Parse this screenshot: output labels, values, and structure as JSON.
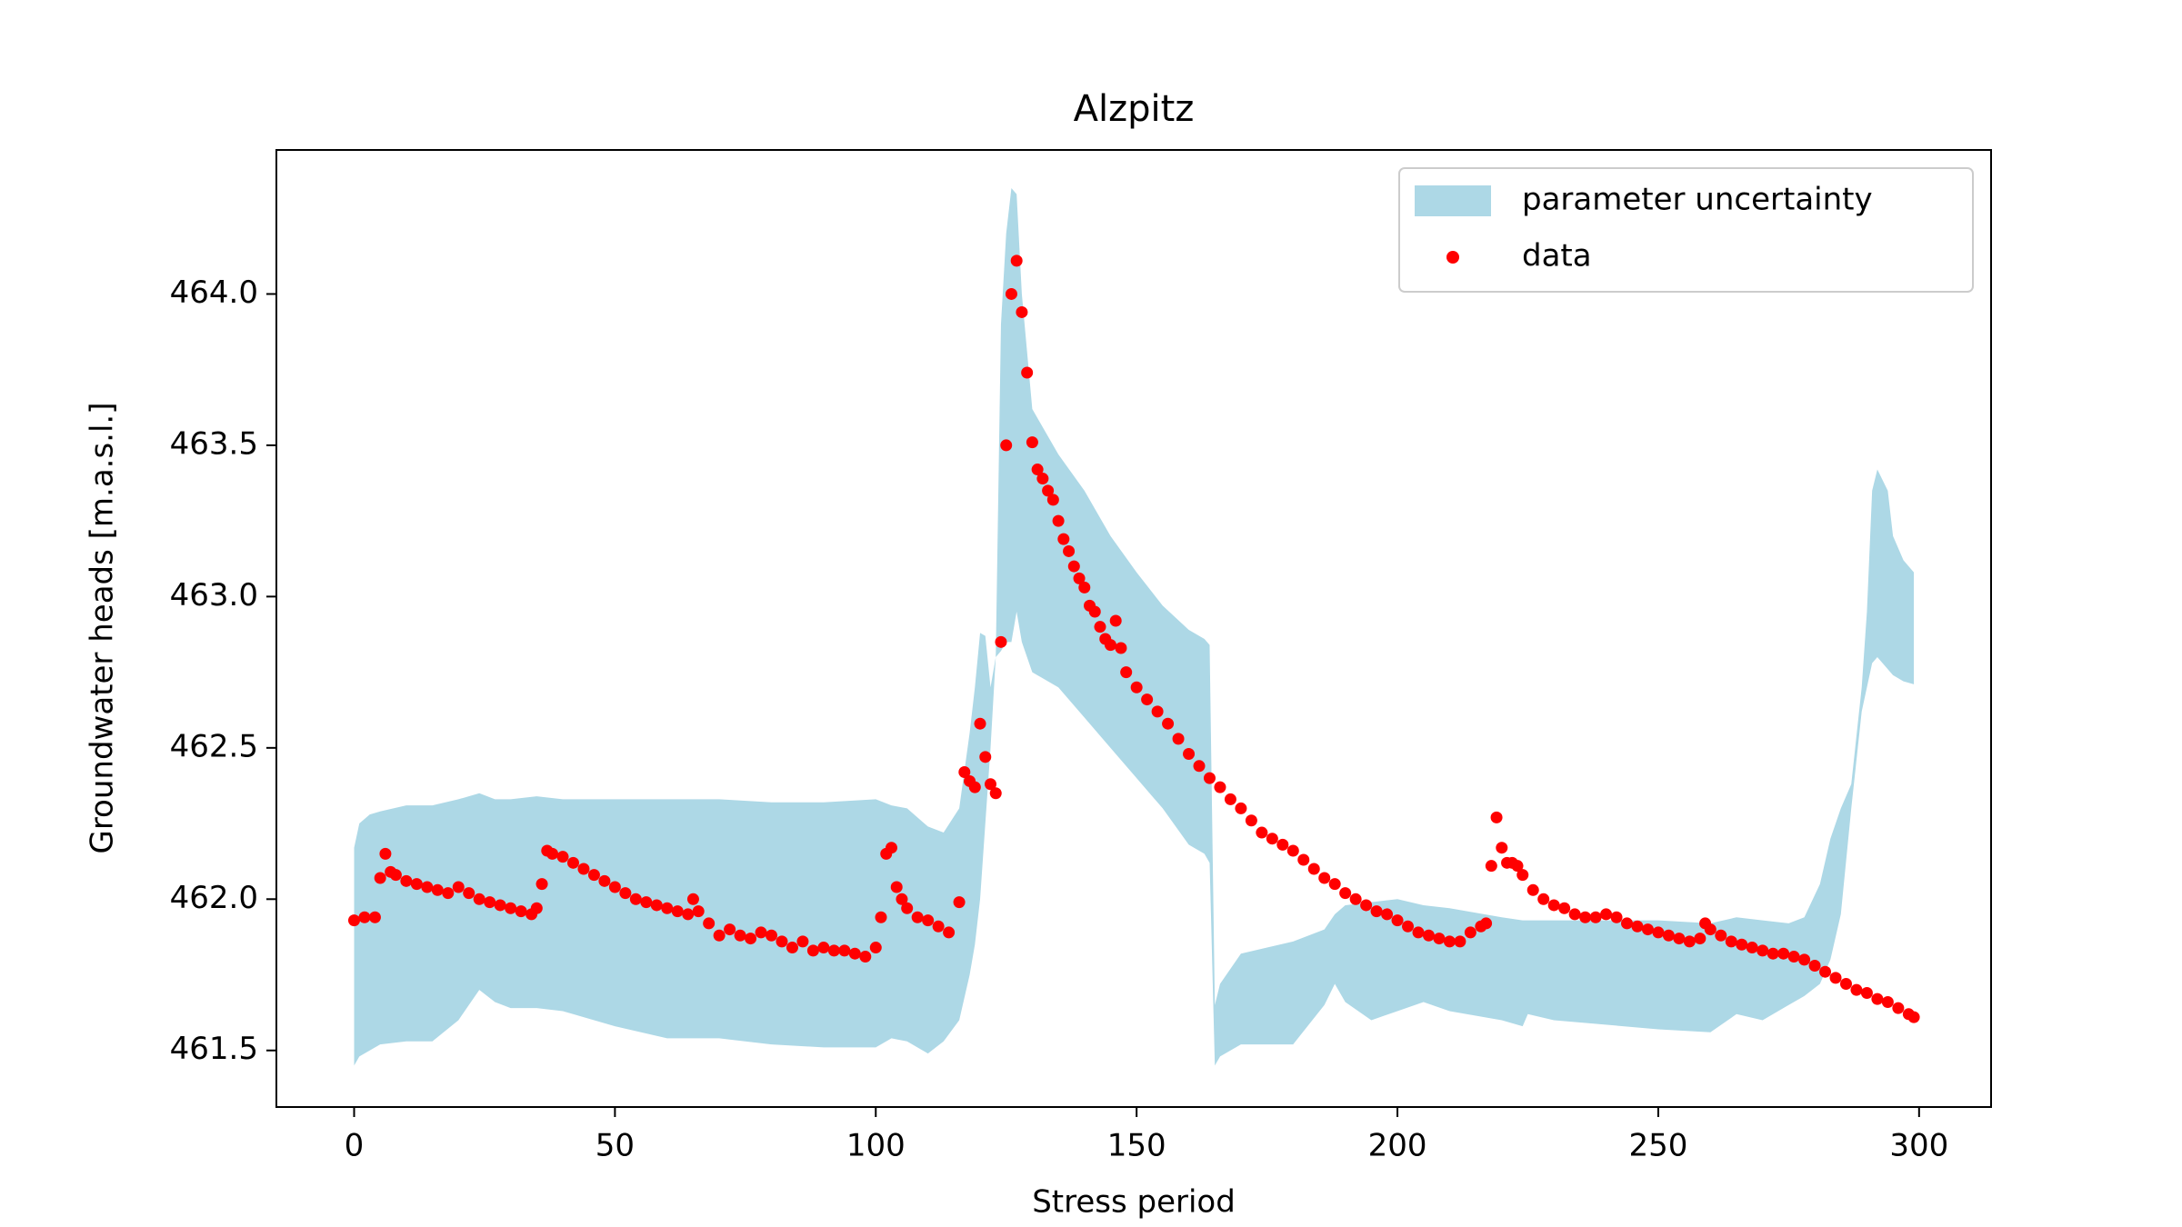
{
  "chart_data": {
    "type": "scatter",
    "title": "Alzpitz",
    "xlabel": "Stress period",
    "ylabel": "Groundwater heads [m.a.s.l.]",
    "xlim": [
      -14.9,
      313.8
    ],
    "ylim": [
      461.313,
      464.476
    ],
    "xticks": [
      0,
      50,
      100,
      150,
      200,
      250,
      300
    ],
    "yticks": [
      {
        "value": 461.5,
        "label": "461.5"
      },
      {
        "value": 462,
        "label": "462.0"
      },
      {
        "value": 462.5,
        "label": "462.5"
      },
      {
        "value": 463,
        "label": "463.0"
      },
      {
        "value": 463.5,
        "label": "463.5"
      },
      {
        "value": 464,
        "label": "464.0"
      }
    ],
    "legend": "upper right",
    "series": [
      {
        "name": "parameter uncertainty",
        "type": "band",
        "color": "#add8e6",
        "x": [
          0,
          1,
          3,
          5,
          10,
          15,
          20,
          22,
          24,
          27,
          30,
          35,
          40,
          50,
          60,
          70,
          80,
          90,
          100,
          103,
          106,
          110,
          113,
          116,
          118,
          119,
          120,
          121,
          122,
          123,
          124,
          125,
          126,
          127,
          128,
          130,
          135,
          140,
          145,
          150,
          155,
          160,
          163,
          164,
          165,
          166,
          170,
          180,
          186,
          188,
          190,
          195,
          200,
          205,
          210,
          220,
          224,
          225,
          230,
          250,
          260,
          265,
          270,
          275,
          278,
          281,
          283,
          285,
          287,
          289,
          290,
          291,
          292,
          294,
          295,
          297,
          299
        ],
        "upper": [
          462.17,
          462.25,
          462.28,
          462.29,
          462.31,
          462.31,
          462.33,
          462.34,
          462.35,
          462.33,
          462.33,
          462.34,
          462.33,
          462.33,
          462.33,
          462.33,
          462.32,
          462.32,
          462.33,
          462.31,
          462.3,
          462.24,
          462.22,
          462.3,
          462.55,
          462.7,
          462.88,
          462.87,
          462.7,
          462.8,
          463.9,
          464.2,
          464.35,
          464.33,
          464.0,
          463.62,
          463.47,
          463.35,
          463.2,
          463.08,
          462.97,
          462.89,
          462.86,
          462.84,
          461.65,
          461.72,
          461.82,
          461.86,
          461.9,
          461.95,
          461.98,
          461.99,
          462.0,
          461.98,
          461.97,
          461.94,
          461.93,
          461.93,
          461.93,
          461.93,
          461.92,
          461.94,
          461.93,
          461.92,
          461.94,
          462.05,
          462.2,
          462.3,
          462.38,
          462.7,
          462.95,
          463.35,
          463.42,
          463.35,
          463.2,
          463.12,
          463.08
        ],
        "lower": [
          461.45,
          461.48,
          461.5,
          461.52,
          461.53,
          461.53,
          461.6,
          461.65,
          461.7,
          461.66,
          461.64,
          461.64,
          461.63,
          461.58,
          461.54,
          461.54,
          461.52,
          461.51,
          461.51,
          461.54,
          461.53,
          461.49,
          461.53,
          461.6,
          461.75,
          461.85,
          462.0,
          462.25,
          462.5,
          462.8,
          462.82,
          462.85,
          462.85,
          462.95,
          462.85,
          462.75,
          462.7,
          462.6,
          462.5,
          462.4,
          462.3,
          462.18,
          462.15,
          462.12,
          461.45,
          461.48,
          461.52,
          461.52,
          461.65,
          461.72,
          461.66,
          461.6,
          461.63,
          461.66,
          461.63,
          461.6,
          461.58,
          461.62,
          461.6,
          461.57,
          461.56,
          461.62,
          461.6,
          461.65,
          461.68,
          461.72,
          461.8,
          461.95,
          462.3,
          462.62,
          462.7,
          462.78,
          462.8,
          462.76,
          462.74,
          462.72,
          462.71
        ]
      },
      {
        "name": "data",
        "type": "points",
        "color": "#ff0000",
        "x": [
          0,
          2,
          4,
          5,
          6,
          7,
          8,
          10,
          12,
          14,
          16,
          18,
          20,
          22,
          24,
          26,
          28,
          30,
          32,
          34,
          35,
          36,
          37,
          38,
          40,
          42,
          44,
          46,
          48,
          50,
          52,
          54,
          56,
          58,
          60,
          62,
          64,
          65,
          66,
          68,
          70,
          72,
          74,
          76,
          78,
          80,
          82,
          84,
          86,
          88,
          90,
          92,
          94,
          96,
          98,
          100,
          101,
          102,
          103,
          104,
          105,
          106,
          108,
          110,
          112,
          114,
          116,
          117,
          118,
          119,
          120,
          121,
          122,
          123,
          124,
          125,
          126,
          127,
          128,
          129,
          130,
          131,
          132,
          133,
          134,
          135,
          136,
          137,
          138,
          139,
          140,
          141,
          142,
          143,
          144,
          145,
          146,
          147,
          148,
          150,
          152,
          154,
          156,
          158,
          160,
          162,
          164,
          166,
          168,
          170,
          172,
          174,
          176,
          178,
          180,
          182,
          184,
          186,
          188,
          190,
          192,
          194,
          196,
          198,
          200,
          202,
          204,
          206,
          208,
          210,
          212,
          214,
          216,
          217,
          218,
          219,
          220,
          221,
          222,
          223,
          224,
          226,
          228,
          230,
          232,
          234,
          236,
          238,
          240,
          242,
          244,
          246,
          248,
          250,
          252,
          254,
          256,
          258,
          259,
          260,
          262,
          264,
          266,
          268,
          270,
          272,
          274,
          276,
          278,
          280,
          282,
          284,
          286,
          288,
          290,
          292,
          294,
          296,
          298,
          299
        ],
        "values": [
          461.93,
          461.94,
          461.94,
          462.07,
          462.15,
          462.09,
          462.08,
          462.06,
          462.05,
          462.04,
          462.03,
          462.02,
          462.04,
          462.02,
          462.0,
          461.99,
          461.98,
          461.97,
          461.96,
          461.95,
          461.97,
          462.05,
          462.16,
          462.15,
          462.14,
          462.12,
          462.1,
          462.08,
          462.06,
          462.04,
          462.02,
          462.0,
          461.99,
          461.98,
          461.97,
          461.96,
          461.95,
          462.0,
          461.96,
          461.92,
          461.88,
          461.9,
          461.88,
          461.87,
          461.89,
          461.88,
          461.86,
          461.84,
          461.86,
          461.83,
          461.84,
          461.83,
          461.83,
          461.82,
          461.81,
          461.84,
          461.94,
          462.15,
          462.17,
          462.04,
          462.0,
          461.97,
          461.94,
          461.93,
          461.91,
          461.89,
          461.99,
          462.42,
          462.39,
          462.37,
          462.58,
          462.47,
          462.38,
          462.35,
          462.85,
          463.5,
          464.0,
          464.11,
          463.94,
          463.74,
          463.51,
          463.42,
          463.39,
          463.35,
          463.32,
          463.25,
          463.19,
          463.15,
          463.1,
          463.06,
          463.03,
          462.97,
          462.95,
          462.9,
          462.86,
          462.84,
          462.92,
          462.83,
          462.75,
          462.7,
          462.66,
          462.62,
          462.58,
          462.53,
          462.48,
          462.44,
          462.4,
          462.37,
          462.33,
          462.3,
          462.26,
          462.22,
          462.2,
          462.18,
          462.16,
          462.13,
          462.1,
          462.07,
          462.05,
          462.02,
          462.0,
          461.98,
          461.96,
          461.95,
          461.93,
          461.91,
          461.89,
          461.88,
          461.87,
          461.86,
          461.86,
          461.89,
          461.91,
          461.92,
          462.11,
          462.27,
          462.17,
          462.12,
          462.12,
          462.11,
          462.08,
          462.03,
          462.0,
          461.98,
          461.97,
          461.95,
          461.94,
          461.94,
          461.95,
          461.94,
          461.92,
          461.91,
          461.9,
          461.89,
          461.88,
          461.87,
          461.86,
          461.87,
          461.92,
          461.9,
          461.88,
          461.86,
          461.85,
          461.84,
          461.83,
          461.82,
          461.82,
          461.81,
          461.8,
          461.78,
          461.76,
          461.74,
          461.72,
          461.7,
          461.69,
          461.67,
          461.66,
          461.64,
          461.62,
          461.61
        ]
      }
    ]
  }
}
